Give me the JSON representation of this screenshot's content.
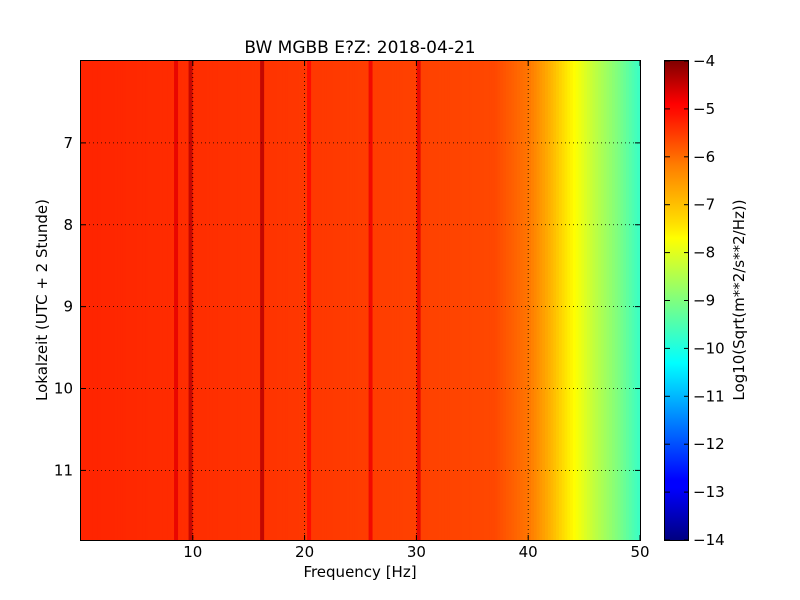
{
  "chart_data": {
    "type": "heatmap",
    "title": "BW MGBB E?Z: 2018-04-21",
    "xlabel": "Frequency [Hz]",
    "ylabel": "Lokalzeit (UTC + 2 Stunde)",
    "colorbar_label": "Log10(Sqrt(m**2/s**2/Hz))",
    "xlim": [
      0,
      50
    ],
    "ylim": [
      11.85,
      6.0
    ],
    "x_ticks": [
      10,
      20,
      30,
      40,
      50
    ],
    "y_ticks": [
      7,
      8,
      9,
      10,
      11
    ],
    "colorbar_range": [
      -14,
      -4
    ],
    "colorbar_ticks": [
      -4,
      -5,
      -6,
      -7,
      -8,
      -9,
      -10,
      -11,
      -12,
      -13,
      -14
    ],
    "colormap": "jet",
    "grid": true,
    "spectrum": {
      "base_level": -5.65,
      "rolloff": [
        {
          "freq": 0,
          "value": -5.6
        },
        {
          "freq": 37,
          "value": -5.95
        },
        {
          "freq": 40,
          "value": -6.4
        },
        {
          "freq": 42,
          "value": -7.0
        },
        {
          "freq": 44,
          "value": -7.7
        },
        {
          "freq": 46,
          "value": -8.4
        },
        {
          "freq": 48,
          "value": -9.0
        },
        {
          "freq": 50,
          "value": -9.7
        }
      ],
      "peaks": [
        {
          "freq": 8.5,
          "value": -5.0
        },
        {
          "freq": 9.8,
          "value": -4.6
        },
        {
          "freq": 16.2,
          "value": -4.55
        },
        {
          "freq": 20.4,
          "value": -5.3
        },
        {
          "freq": 25.9,
          "value": -5.1
        },
        {
          "freq": 30.2,
          "value": -5.0
        }
      ]
    }
  },
  "colors": {
    "jet": [
      "#00007f",
      "#0000ff",
      "#007fff",
      "#00ffff",
      "#7fff7f",
      "#ffff00",
      "#ff7f00",
      "#ff0000",
      "#7f0000"
    ]
  }
}
